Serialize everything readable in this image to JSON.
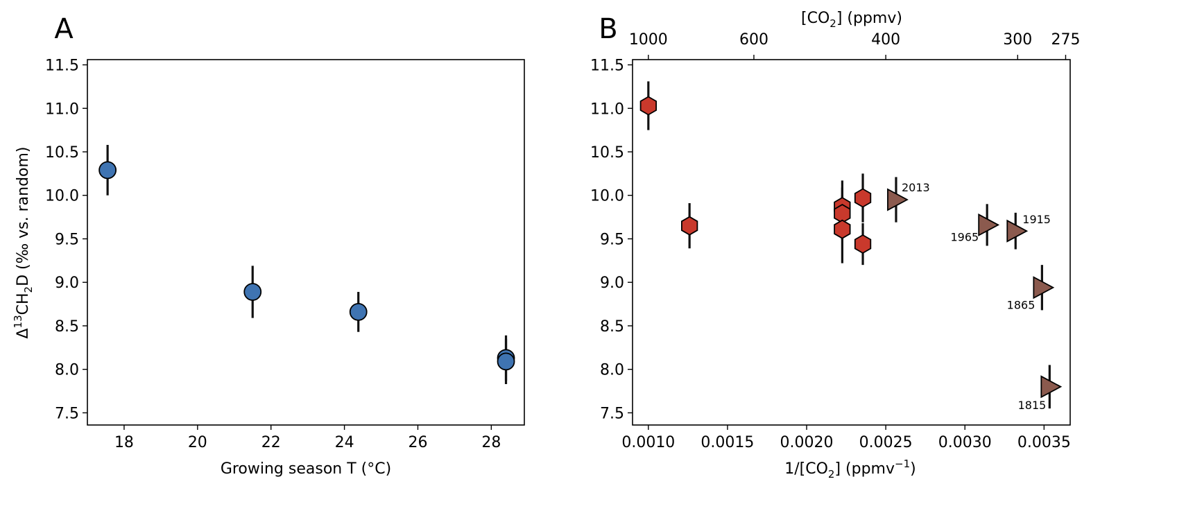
{
  "chart_data": [
    {
      "panel_label": "A",
      "type": "scatter",
      "xlabel": "Growing season T (°C)",
      "ylabel_parts": [
        "Δ",
        "13",
        "CH",
        "2",
        "D (‰ vs. random)"
      ],
      "xlim": [
        17.0,
        28.9
      ],
      "ylim": [
        7.36,
        11.56
      ],
      "xticks": [
        18,
        20,
        22,
        24,
        26,
        28
      ],
      "yticks": [
        7.5,
        8.0,
        8.5,
        9.0,
        9.5,
        10.0,
        10.5,
        11.0,
        11.5
      ],
      "marker": "circle",
      "color": "#3f74b2",
      "points": [
        {
          "x": 17.55,
          "y": 10.29,
          "err": 0.29
        },
        {
          "x": 21.5,
          "y": 8.89,
          "err": 0.3
        },
        {
          "x": 24.38,
          "y": 8.66,
          "err": 0.23
        },
        {
          "x": 28.4,
          "y": 8.13,
          "err": 0.26
        },
        {
          "x": 28.4,
          "y": 8.09,
          "err": 0.26
        }
      ]
    },
    {
      "panel_label": "B",
      "type": "scatter",
      "xlabel_parts": [
        "1/[CO",
        "2",
        "] (ppmv",
        "−1",
        ")"
      ],
      "top_xlabel_parts": [
        "[CO",
        "2",
        "] (ppmv)"
      ],
      "xlim": [
        0.0009,
        0.003665
      ],
      "ylim": [
        7.36,
        11.56
      ],
      "xticks": [
        "0.0010",
        "0.0015",
        "0.0020",
        "0.0025",
        "0.0030",
        "0.0035"
      ],
      "top_xticks": [
        1000,
        600,
        400,
        300,
        275
      ],
      "yticks": [
        7.5,
        8.0,
        8.5,
        9.0,
        9.5,
        10.0,
        10.5,
        11.0,
        11.5
      ],
      "series": [
        {
          "marker": "hexagon",
          "color": "#c9392c",
          "points": [
            {
              "x": 0.001,
              "y": 11.03,
              "err": 0.28
            },
            {
              "x": 0.00126,
              "y": 9.65,
              "err": 0.26
            },
            {
              "x": 0.002225,
              "y": 9.87,
              "err": 0.3
            },
            {
              "x": 0.002225,
              "y": 9.79,
              "err": 0.3
            },
            {
              "x": 0.002225,
              "y": 9.61,
              "err": 0.39
            },
            {
              "x": 0.002355,
              "y": 9.97,
              "err": 0.28
            },
            {
              "x": 0.002355,
              "y": 9.44,
              "err": 0.24
            }
          ]
        },
        {
          "marker": "triangle-right",
          "color": "#8b5a4e",
          "points": [
            {
              "x": 0.002565,
              "y": 9.95,
              "err": 0.26,
              "label": "2013"
            },
            {
              "x": 0.00314,
              "y": 9.66,
              "err": 0.24,
              "label": "1965"
            },
            {
              "x": 0.00332,
              "y": 9.59,
              "err": 0.21,
              "label": "1915"
            },
            {
              "x": 0.003487,
              "y": 8.94,
              "err": 0.26,
              "label": "1865"
            },
            {
              "x": 0.003535,
              "y": 7.8,
              "err": 0.25,
              "label": "1815"
            }
          ]
        }
      ]
    }
  ]
}
